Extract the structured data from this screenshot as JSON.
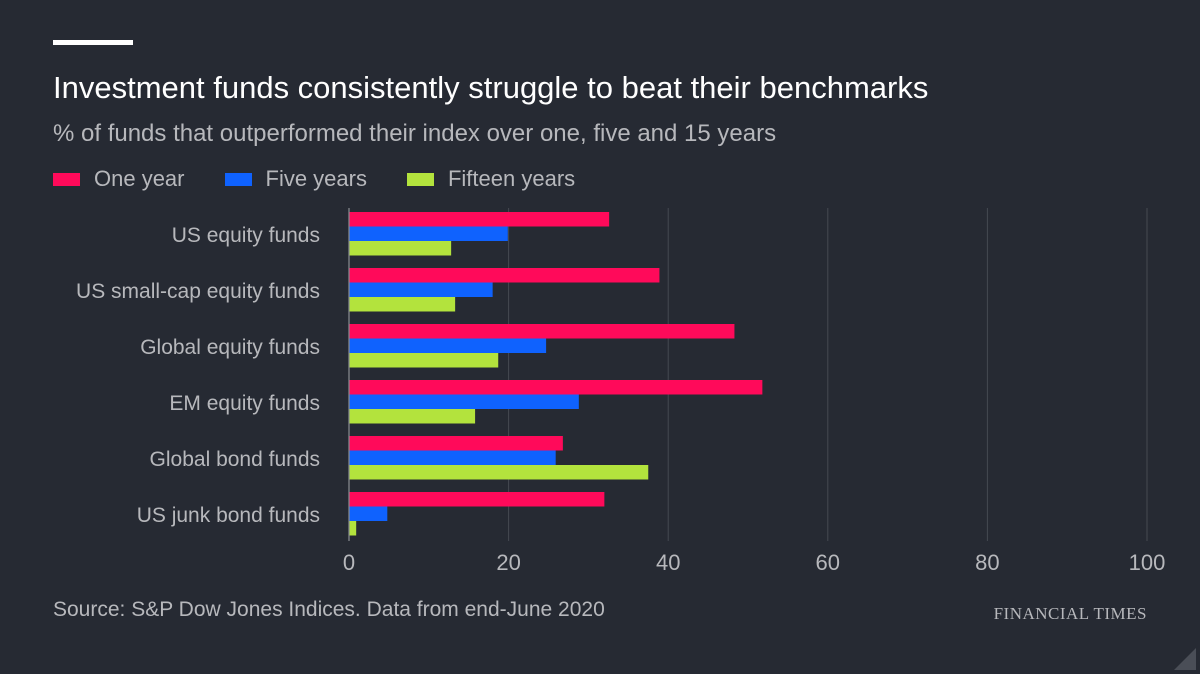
{
  "title": "Investment funds consistently struggle to beat their benchmarks",
  "subtitle": "% of funds that outperformed their index over one, five and 15 years",
  "source": "Source: S&P Dow Jones Indices. Data from end-June 2020",
  "brand": "FINANCIAL TIMES",
  "legend": [
    {
      "label": "One year",
      "color": "#ff0a5a"
    },
    {
      "label": "Five years",
      "color": "#0f62fe"
    },
    {
      "label": "Fifteen years",
      "color": "#b3e33d"
    }
  ],
  "chart_data": {
    "type": "bar",
    "orientation": "horizontal",
    "title": "Investment funds consistently struggle to beat their benchmarks",
    "subtitle": "% of funds that outperformed their index over one, five and 15 years",
    "categories": [
      "US equity funds",
      "US small-cap equity funds",
      "Global equity funds",
      "EM equity funds",
      "Global bond funds",
      "US junk bond funds"
    ],
    "series": [
      {
        "name": "One year",
        "color": "#ff0a5a",
        "values": [
          32.6,
          38.9,
          48.3,
          51.8,
          26.8,
          32.0
        ]
      },
      {
        "name": "Five years",
        "color": "#0f62fe",
        "values": [
          19.9,
          18.0,
          24.7,
          28.8,
          25.9,
          4.8
        ]
      },
      {
        "name": "Fifteen years",
        "color": "#b3e33d",
        "values": [
          12.8,
          13.3,
          18.7,
          15.8,
          37.5,
          0.9
        ]
      }
    ],
    "xlim": [
      0,
      100
    ],
    "xticks": [
      0,
      20,
      40,
      60,
      80,
      100
    ],
    "xlabel": "",
    "ylabel": "",
    "grid": true,
    "legend_position": "top-left"
  }
}
